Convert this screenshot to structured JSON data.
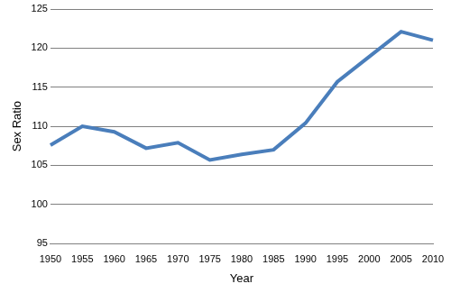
{
  "chart_data": {
    "type": "line",
    "x_label": "Year",
    "y_label": "Sex Ratio",
    "x": [
      1950,
      1955,
      1960,
      1965,
      1970,
      1975,
      1980,
      1985,
      1990,
      1995,
      2000,
      2005,
      2010
    ],
    "values": [
      107.6,
      110.0,
      109.3,
      107.2,
      107.9,
      105.7,
      106.4,
      107.0,
      110.4,
      115.7,
      118.9,
      122.1,
      121.0
    ],
    "color": "#4a7ebb",
    "marker": "none",
    "line_style": "solid",
    "xlim": [
      1950,
      2010
    ],
    "xticks": [
      1950,
      1955,
      1960,
      1965,
      1970,
      1975,
      1980,
      1985,
      1990,
      1995,
      2000,
      2005,
      2010
    ],
    "ylim": [
      95,
      125
    ],
    "yticks": [
      95,
      100,
      105,
      110,
      115,
      120,
      125
    ],
    "grid": true
  }
}
